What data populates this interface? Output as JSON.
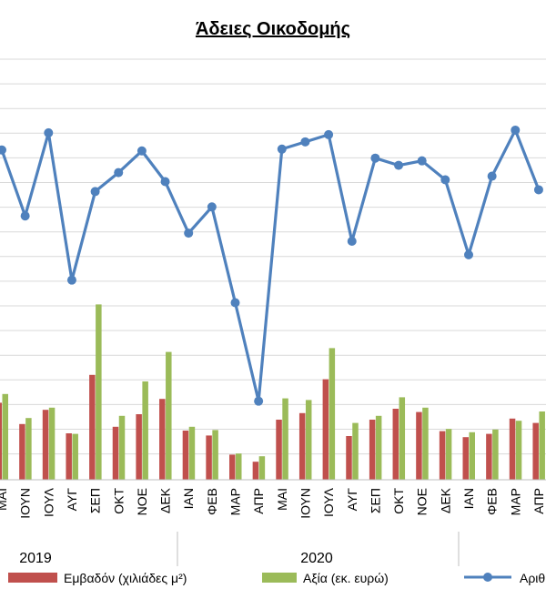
{
  "chart_data": {
    "type": "bar",
    "title": "Άδειες Οικοδομής",
    "categories": [
      "ΜΑΙ",
      "ΙΟΥΝ",
      "ΙΟΥΛ",
      "ΑΥΓ",
      "ΣΕΠ",
      "ΟΚΤ",
      "ΝΟΕ",
      "ΔΕΚ",
      "ΙΑΝ",
      "ΦΕΒ",
      "ΜΑΡ",
      "ΑΠΡ",
      "ΜΑΙ",
      "ΙΟΥΝ",
      "ΙΟΥΛ",
      "ΑΥΓ",
      "ΣΕΠ",
      "ΟΚΤ",
      "ΝΟΕ",
      "ΔΕΚ",
      "ΙΑΝ",
      "ΦΕΒ",
      "ΜΑΡ",
      "ΑΠΡ"
    ],
    "year_groups": [
      {
        "label": "2019",
        "start": 0,
        "end": 7
      },
      {
        "label": "2020",
        "start": 8,
        "end": 19
      },
      {
        "label": "",
        "start": 20,
        "end": 23
      }
    ],
    "series": [
      {
        "name": "Εμβαδόν (χιλιάδες μ²)",
        "type": "bar",
        "color": "#c0504d",
        "values": [
          141,
          102,
          128,
          85,
          192,
          97,
          120,
          148,
          90,
          81,
          46,
          33,
          110,
          122,
          184,
          80,
          110,
          130,
          124,
          89,
          78,
          84,
          112,
          104
        ]
      },
      {
        "name": "Αξία (εκ. ευρώ)",
        "type": "bar",
        "color": "#9bbb59",
        "values": [
          157,
          113,
          132,
          84,
          321,
          117,
          180,
          234,
          97,
          91,
          48,
          43,
          149,
          146,
          241,
          104,
          117,
          151,
          132,
          93,
          87,
          92,
          108,
          125
        ]
      },
      {
        "name": "Αριθμό",
        "type": "line",
        "color": "#4f81bd",
        "values": [
          385,
          312,
          404,
          241,
          339,
          360,
          384,
          350,
          293,
          322,
          216,
          107,
          386,
          394,
          402,
          284,
          376,
          368,
          373,
          352,
          269,
          356,
          407,
          341
        ]
      }
    ],
    "grid": true,
    "legend": "bottom"
  }
}
